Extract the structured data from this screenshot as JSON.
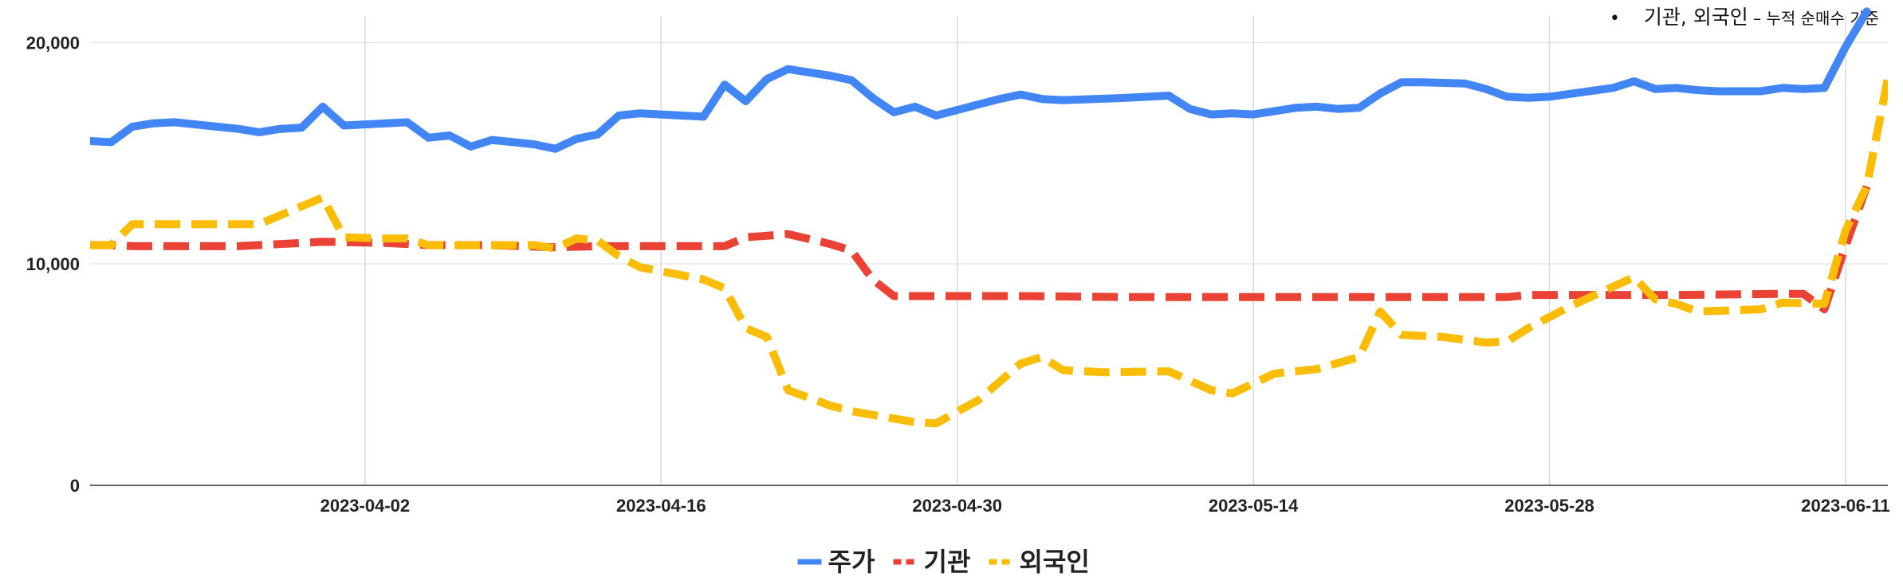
{
  "note": {
    "text": "기관, 외국인",
    "sub": " – 누적 순매수 기준"
  },
  "chart_data": {
    "type": "line",
    "x_ticks": [
      "2023-04-02",
      "2023-04-16",
      "2023-04-30",
      "2023-05-14",
      "2023-05-28",
      "2023-06-11"
    ],
    "y_ticks": [
      "0",
      "10,000",
      "20,000"
    ],
    "ylim": [
      0,
      21200
    ],
    "xlim": [
      "2023-03-20",
      "2023-06-13"
    ],
    "grid": true,
    "legend_position": "bottom",
    "series": [
      {
        "name": "주가",
        "color": "#4285F4",
        "dash": "solid",
        "points": [
          [
            "2023-03-20",
            15550
          ],
          [
            "2023-03-21",
            15500
          ],
          [
            "2023-03-22",
            16200
          ],
          [
            "2023-03-23",
            16350
          ],
          [
            "2023-03-24",
            16400
          ],
          [
            "2023-03-27",
            16100
          ],
          [
            "2023-03-28",
            15950
          ],
          [
            "2023-03-29",
            16100
          ],
          [
            "2023-03-30",
            16150
          ],
          [
            "2023-03-31",
            17100
          ],
          [
            "2023-04-01",
            16250
          ],
          [
            "2023-04-03",
            16350
          ],
          [
            "2023-04-04",
            16400
          ],
          [
            "2023-04-05",
            15700
          ],
          [
            "2023-04-06",
            15800
          ],
          [
            "2023-04-07",
            15300
          ],
          [
            "2023-04-08",
            15600
          ],
          [
            "2023-04-10",
            15400
          ],
          [
            "2023-04-11",
            15200
          ],
          [
            "2023-04-12",
            15650
          ],
          [
            "2023-04-13",
            15850
          ],
          [
            "2023-04-14",
            16700
          ],
          [
            "2023-04-15",
            16800
          ],
          [
            "2023-04-17",
            16700
          ],
          [
            "2023-04-18",
            16650
          ],
          [
            "2023-04-19",
            18100
          ],
          [
            "2023-04-20",
            17350
          ],
          [
            "2023-04-21",
            18350
          ],
          [
            "2023-04-22",
            18800
          ],
          [
            "2023-04-24",
            18500
          ],
          [
            "2023-04-25",
            18300
          ],
          [
            "2023-04-26",
            17500
          ],
          [
            "2023-04-27",
            16850
          ],
          [
            "2023-04-28",
            17100
          ],
          [
            "2023-04-29",
            16700
          ],
          [
            "2023-05-01",
            17200
          ],
          [
            "2023-05-02",
            17450
          ],
          [
            "2023-05-03",
            17650
          ],
          [
            "2023-05-04",
            17450
          ],
          [
            "2023-05-05",
            17400
          ],
          [
            "2023-05-08",
            17500
          ],
          [
            "2023-05-09",
            17550
          ],
          [
            "2023-05-10",
            17600
          ],
          [
            "2023-05-11",
            17000
          ],
          [
            "2023-05-12",
            16750
          ],
          [
            "2023-05-13",
            16800
          ],
          [
            "2023-05-14",
            16750
          ],
          [
            "2023-05-16",
            17050
          ],
          [
            "2023-05-17",
            17100
          ],
          [
            "2023-05-18",
            17000
          ],
          [
            "2023-05-19",
            17050
          ],
          [
            "2023-05-20",
            17700
          ],
          [
            "2023-05-21",
            18200
          ],
          [
            "2023-05-22",
            18200
          ],
          [
            "2023-05-24",
            18150
          ],
          [
            "2023-05-25",
            17900
          ],
          [
            "2023-05-26",
            17550
          ],
          [
            "2023-05-27",
            17500
          ],
          [
            "2023-05-28",
            17550
          ],
          [
            "2023-05-31",
            17950
          ],
          [
            "2023-06-01",
            18250
          ],
          [
            "2023-06-02",
            17900
          ],
          [
            "2023-06-03",
            17950
          ],
          [
            "2023-06-04",
            17850
          ],
          [
            "2023-06-05",
            17800
          ],
          [
            "2023-06-07",
            17800
          ],
          [
            "2023-06-08",
            17950
          ],
          [
            "2023-06-09",
            17900
          ],
          [
            "2023-06-10",
            17950
          ],
          [
            "2023-06-11",
            19800
          ],
          [
            "2023-06-12",
            21400
          ]
        ]
      },
      {
        "name": "기관",
        "color": "#EA4335",
        "dash": "dashed",
        "points": [
          [
            "2023-03-20",
            10850
          ],
          [
            "2023-03-21",
            10850
          ],
          [
            "2023-03-22",
            10800
          ],
          [
            "2023-03-27",
            10800
          ],
          [
            "2023-03-31",
            11000
          ],
          [
            "2023-04-03",
            10950
          ],
          [
            "2023-04-05",
            10850
          ],
          [
            "2023-04-08",
            10850
          ],
          [
            "2023-04-11",
            10750
          ],
          [
            "2023-04-13",
            10800
          ],
          [
            "2023-04-15",
            10800
          ],
          [
            "2023-04-19",
            10800
          ],
          [
            "2023-04-20",
            11200
          ],
          [
            "2023-04-22",
            11350
          ],
          [
            "2023-04-24",
            10900
          ],
          [
            "2023-04-25",
            10600
          ],
          [
            "2023-04-26",
            9300
          ],
          [
            "2023-04-27",
            8550
          ],
          [
            "2023-04-30",
            8550
          ],
          [
            "2023-05-03",
            8550
          ],
          [
            "2023-05-08",
            8500
          ],
          [
            "2023-05-13",
            8500
          ],
          [
            "2023-05-20",
            8500
          ],
          [
            "2023-05-24",
            8500
          ],
          [
            "2023-05-26",
            8500
          ],
          [
            "2023-05-27",
            8600
          ],
          [
            "2023-05-31",
            8600
          ],
          [
            "2023-06-03",
            8600
          ],
          [
            "2023-06-08",
            8650
          ],
          [
            "2023-06-09",
            8650
          ],
          [
            "2023-06-10",
            7950
          ],
          [
            "2023-06-11",
            10800
          ],
          [
            "2023-06-12",
            13500
          ]
        ]
      },
      {
        "name": "외국인",
        "color": "#FBBC04",
        "dash": "dashed",
        "points": [
          [
            "2023-03-20",
            10850
          ],
          [
            "2023-03-21",
            10850
          ],
          [
            "2023-03-22",
            11800
          ],
          [
            "2023-03-27",
            11800
          ],
          [
            "2023-03-28",
            11800
          ],
          [
            "2023-03-31",
            13000
          ],
          [
            "2023-04-01",
            11200
          ],
          [
            "2023-04-03",
            11150
          ],
          [
            "2023-04-04",
            11150
          ],
          [
            "2023-04-05",
            10850
          ],
          [
            "2023-04-07",
            10850
          ],
          [
            "2023-04-10",
            10850
          ],
          [
            "2023-04-11",
            10700
          ],
          [
            "2023-04-12",
            11150
          ],
          [
            "2023-04-13",
            11050
          ],
          [
            "2023-04-14",
            10350
          ],
          [
            "2023-04-15",
            9850
          ],
          [
            "2023-04-18",
            9300
          ],
          [
            "2023-04-19",
            8900
          ],
          [
            "2023-04-20",
            7100
          ],
          [
            "2023-04-21",
            6700
          ],
          [
            "2023-04-22",
            4300
          ],
          [
            "2023-04-24",
            3600
          ],
          [
            "2023-04-25",
            3350
          ],
          [
            "2023-04-28",
            2850
          ],
          [
            "2023-04-29",
            2800
          ],
          [
            "2023-05-01",
            3850
          ],
          [
            "2023-05-03",
            5500
          ],
          [
            "2023-05-04",
            5800
          ],
          [
            "2023-05-05",
            5200
          ],
          [
            "2023-05-07",
            5100
          ],
          [
            "2023-05-10",
            5150
          ],
          [
            "2023-05-12",
            4300
          ],
          [
            "2023-05-13",
            4150
          ],
          [
            "2023-05-15",
            5050
          ],
          [
            "2023-05-17",
            5250
          ],
          [
            "2023-05-19",
            5800
          ],
          [
            "2023-05-20",
            7850
          ],
          [
            "2023-05-21",
            6800
          ],
          [
            "2023-05-23",
            6700
          ],
          [
            "2023-05-25",
            6450
          ],
          [
            "2023-05-26",
            6500
          ],
          [
            "2023-05-27",
            7100
          ],
          [
            "2023-05-29",
            8100
          ],
          [
            "2023-06-01",
            9400
          ],
          [
            "2023-06-02",
            8400
          ],
          [
            "2023-06-03",
            8200
          ],
          [
            "2023-06-04",
            7850
          ],
          [
            "2023-06-07",
            7950
          ],
          [
            "2023-06-08",
            8250
          ],
          [
            "2023-06-10",
            8200
          ],
          [
            "2023-06-11",
            11500
          ],
          [
            "2023-06-12",
            13500
          ],
          [
            "2023-06-13",
            18400
          ]
        ]
      }
    ]
  }
}
